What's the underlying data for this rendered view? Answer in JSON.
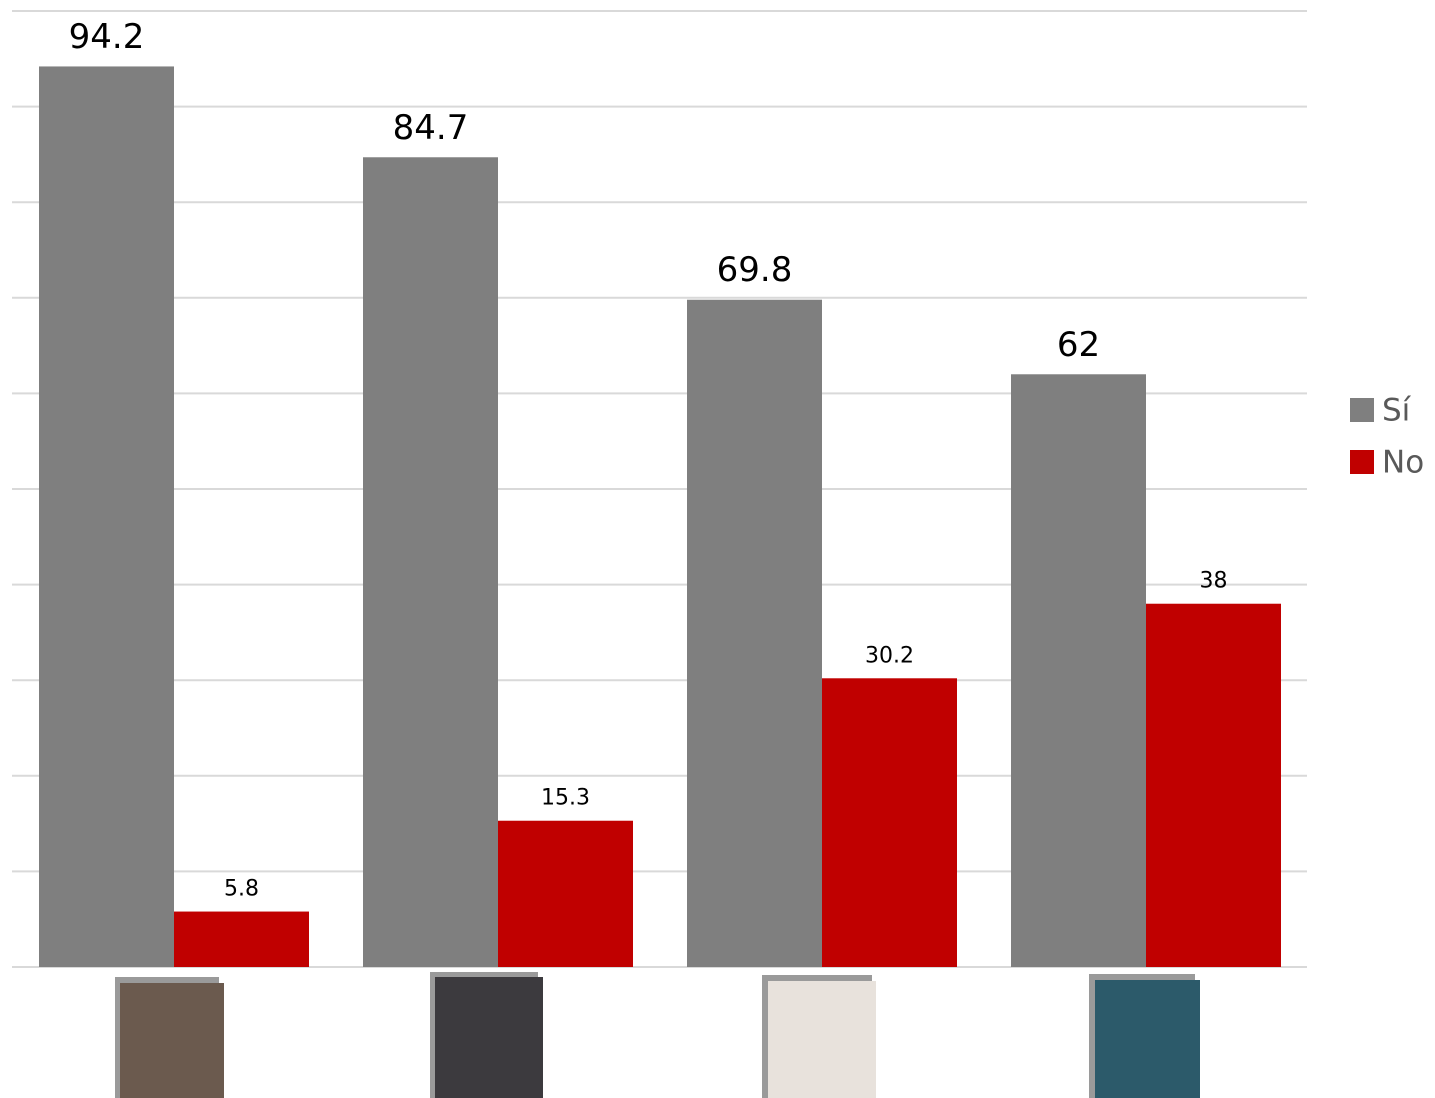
{
  "chart_data": {
    "type": "bar",
    "categories": [
      null,
      null,
      null,
      null
    ],
    "series": [
      {
        "name": "Sí",
        "color": "#7f7f7f",
        "values": [
          94.2,
          84.7,
          69.8,
          62
        ]
      },
      {
        "name": "No",
        "color": "#c00000",
        "values": [
          5.8,
          15.3,
          30.2,
          38
        ]
      }
    ],
    "ylim": [
      0,
      100
    ],
    "yticks": [
      0,
      10,
      20,
      30,
      40,
      50,
      60,
      70,
      80,
      90,
      100
    ],
    "grid": true,
    "legend": "right"
  }
}
